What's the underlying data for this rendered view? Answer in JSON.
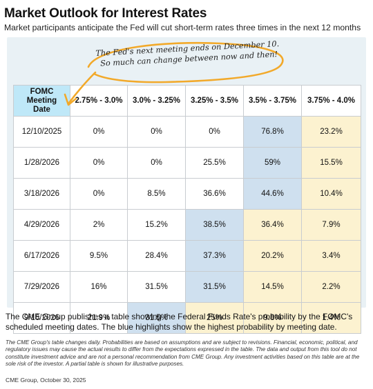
{
  "header": {
    "title": "Market Outlook for Interest Rates",
    "subtitle": "Market participants anticipate the Fed will cut short-term rates three times in the next 12 months"
  },
  "callout": {
    "line1": "The Fed's next meeting ends on December 10.",
    "line2": "So much can change between now and then!"
  },
  "colors": {
    "panel_bg": "#e9f1f5",
    "header_highlight": "#bfe8f8",
    "highest_probability": "#cfe0ef",
    "higher_range": "#fcf2d0",
    "callout_stroke": "#f2a92a"
  },
  "chart_data": {
    "type": "table",
    "title": "Market Outlook for Interest Rates",
    "row_header": "FOMC Meeting Date",
    "columns": [
      "2.75% - 3.0%",
      "3.0% - 3.25%",
      "3.25% - 3.5%",
      "3.5% - 3.75%",
      "3.75% - 4.0%"
    ],
    "current_range": "3.75% - 4.0%",
    "rows": [
      {
        "date": "12/10/2025",
        "values": [
          "0%",
          "0%",
          "0%",
          "76.8%",
          "23.2%"
        ],
        "highest_index": 3
      },
      {
        "date": "1/28/2026",
        "values": [
          "0%",
          "0%",
          "25.5%",
          "59%",
          "15.5%"
        ],
        "highest_index": 3
      },
      {
        "date": "3/18/2026",
        "values": [
          "0%",
          "8.5%",
          "36.6%",
          "44.6%",
          "10.4%"
        ],
        "highest_index": 3
      },
      {
        "date": "4/29/2026",
        "values": [
          "2%",
          "15.2%",
          "38.5%",
          "36.4%",
          "7.9%"
        ],
        "highest_index": 2
      },
      {
        "date": "6/17/2026",
        "values": [
          "9.5%",
          "28.4%",
          "37.3%",
          "20.2%",
          "3.4%"
        ],
        "highest_index": 2
      },
      {
        "date": "7/29/2026",
        "values": [
          "16%",
          "31.5%",
          "31.5%",
          "14.5%",
          "2.2%"
        ],
        "highest_index": 2
      },
      {
        "date": "9/16/2026",
        "values": [
          "21.9%",
          "31.5%",
          "25%",
          "9.8%",
          "1.4%"
        ],
        "highest_index": 1
      }
    ]
  },
  "footer": {
    "description": "The CME Group publishes a table showing the Federal Funds Rate's probability by the FOMC's scheduled meeting dates. The blue highlights show the highest probability by meeting date.",
    "disclaimer": "The CME Group's table changes daily. Probabilities are based on assumptions and are subject to revisions. Financial, economic, political, and regulatory issues may cause the actual results to differ from the expectations expressed in the table. The data and output from this tool do not constitute investment advice and are not a personal recommendation from CME Group. Any investment activities based on this table are at the sole risk of the investor. A partial table is shown for illustrative purposes.",
    "source": "CME Group,  October 30, 2025"
  }
}
